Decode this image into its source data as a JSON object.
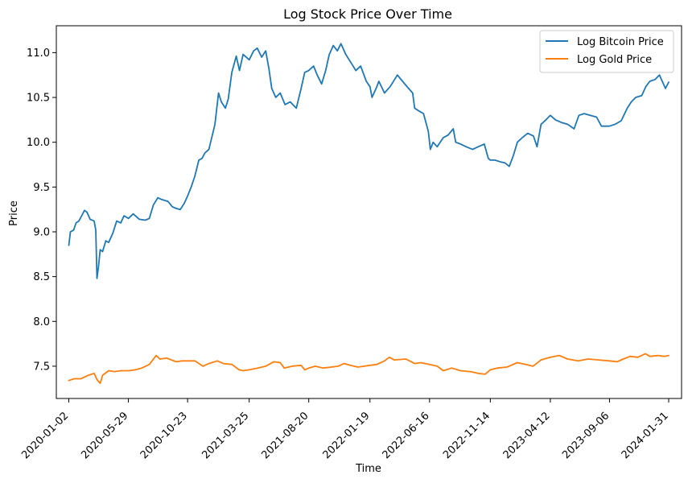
{
  "chart_data": {
    "type": "line",
    "title": "Log Stock Price Over Time",
    "xlabel": "Time",
    "ylabel": "Price",
    "x_ticks": [
      "2020-01-02",
      "2020-05-29",
      "2020-10-23",
      "2021-03-25",
      "2021-08-20",
      "2022-01-19",
      "2022-06-16",
      "2022-11-14",
      "2023-04-12",
      "2023-09-06",
      "2024-01-31"
    ],
    "y_ticks": [
      "7.5",
      "8.0",
      "8.5",
      "9.0",
      "9.5",
      "10.0",
      "10.5",
      "11.0"
    ],
    "x_range": [
      "2019-12-02",
      "2024-03-03"
    ],
    "ylim": [
      7.14,
      11.3
    ],
    "legend_position": "top-right",
    "series": [
      {
        "name": "Log Bitcoin Price",
        "color": "#1f77b4",
        "points": [
          [
            "2020-01-02",
            8.85
          ],
          [
            "2020-01-06",
            9.0
          ],
          [
            "2020-01-14",
            9.02
          ],
          [
            "2020-01-20",
            9.1
          ],
          [
            "2020-01-27",
            9.12
          ],
          [
            "2020-02-03",
            9.18
          ],
          [
            "2020-02-10",
            9.24
          ],
          [
            "2020-02-16",
            9.22
          ],
          [
            "2020-02-24",
            9.14
          ],
          [
            "2020-03-05",
            9.12
          ],
          [
            "2020-03-09",
            9.02
          ],
          [
            "2020-03-12",
            8.48
          ],
          [
            "2020-03-16",
            8.62
          ],
          [
            "2020-03-20",
            8.8
          ],
          [
            "2020-03-26",
            8.78
          ],
          [
            "2020-04-03",
            8.9
          ],
          [
            "2020-04-10",
            8.88
          ],
          [
            "2020-04-20",
            8.98
          ],
          [
            "2020-04-30",
            9.12
          ],
          [
            "2020-05-10",
            9.1
          ],
          [
            "2020-05-18",
            9.18
          ],
          [
            "2020-05-29",
            9.15
          ],
          [
            "2020-06-10",
            9.2
          ],
          [
            "2020-06-25",
            9.14
          ],
          [
            "2020-07-10",
            9.13
          ],
          [
            "2020-07-20",
            9.15
          ],
          [
            "2020-07-30",
            9.3
          ],
          [
            "2020-08-10",
            9.38
          ],
          [
            "2020-08-20",
            9.36
          ],
          [
            "2020-09-04",
            9.34
          ],
          [
            "2020-09-15",
            9.28
          ],
          [
            "2020-09-25",
            9.26
          ],
          [
            "2020-10-05",
            9.25
          ],
          [
            "2020-10-15",
            9.32
          ],
          [
            "2020-10-23",
            9.4
          ],
          [
            "2020-11-01",
            9.5
          ],
          [
            "2020-11-10",
            9.62
          ],
          [
            "2020-11-20",
            9.8
          ],
          [
            "2020-11-28",
            9.82
          ],
          [
            "2020-12-05",
            9.88
          ],
          [
            "2020-12-15",
            9.92
          ],
          [
            "2020-12-22",
            10.05
          ],
          [
            "2020-12-30",
            10.2
          ],
          [
            "2021-01-08",
            10.55
          ],
          [
            "2021-01-15",
            10.45
          ],
          [
            "2021-01-25",
            10.38
          ],
          [
            "2021-02-01",
            10.48
          ],
          [
            "2021-02-10",
            10.78
          ],
          [
            "2021-02-21",
            10.96
          ],
          [
            "2021-03-01",
            10.8
          ],
          [
            "2021-03-10",
            10.98
          ],
          [
            "2021-03-25",
            10.92
          ],
          [
            "2021-04-05",
            11.02
          ],
          [
            "2021-04-14",
            11.05
          ],
          [
            "2021-04-25",
            10.95
          ],
          [
            "2021-05-05",
            11.02
          ],
          [
            "2021-05-13",
            10.82
          ],
          [
            "2021-05-20",
            10.6
          ],
          [
            "2021-05-30",
            10.5
          ],
          [
            "2021-06-10",
            10.55
          ],
          [
            "2021-06-22",
            10.42
          ],
          [
            "2021-07-05",
            10.45
          ],
          [
            "2021-07-20",
            10.38
          ],
          [
            "2021-08-01",
            10.6
          ],
          [
            "2021-08-10",
            10.78
          ],
          [
            "2021-08-20",
            10.8
          ],
          [
            "2021-09-01",
            10.85
          ],
          [
            "2021-09-10",
            10.75
          ],
          [
            "2021-09-21",
            10.65
          ],
          [
            "2021-10-01",
            10.8
          ],
          [
            "2021-10-10",
            10.98
          ],
          [
            "2021-10-20",
            11.08
          ],
          [
            "2021-10-30",
            11.02
          ],
          [
            "2021-11-08",
            11.1
          ],
          [
            "2021-11-20",
            10.98
          ],
          [
            "2021-12-04",
            10.88
          ],
          [
            "2021-12-15",
            10.8
          ],
          [
            "2021-12-27",
            10.85
          ],
          [
            "2022-01-10",
            10.68
          ],
          [
            "2022-01-19",
            10.62
          ],
          [
            "2022-01-24",
            10.5
          ],
          [
            "2022-02-05",
            10.62
          ],
          [
            "2022-02-10",
            10.68
          ],
          [
            "2022-02-24",
            10.55
          ],
          [
            "2022-03-10",
            10.62
          ],
          [
            "2022-03-28",
            10.75
          ],
          [
            "2022-04-10",
            10.68
          ],
          [
            "2022-04-25",
            10.6
          ],
          [
            "2022-05-05",
            10.55
          ],
          [
            "2022-05-10",
            10.38
          ],
          [
            "2022-05-20",
            10.35
          ],
          [
            "2022-06-01",
            10.32
          ],
          [
            "2022-06-13",
            10.12
          ],
          [
            "2022-06-18",
            9.92
          ],
          [
            "2022-06-25",
            10.0
          ],
          [
            "2022-07-05",
            9.95
          ],
          [
            "2022-07-20",
            10.05
          ],
          [
            "2022-08-01",
            10.08
          ],
          [
            "2022-08-14",
            10.15
          ],
          [
            "2022-08-20",
            10.0
          ],
          [
            "2022-09-01",
            9.98
          ],
          [
            "2022-09-15",
            9.95
          ],
          [
            "2022-10-01",
            9.92
          ],
          [
            "2022-10-15",
            9.95
          ],
          [
            "2022-10-30",
            9.98
          ],
          [
            "2022-11-09",
            9.82
          ],
          [
            "2022-11-14",
            9.8
          ],
          [
            "2022-11-25",
            9.8
          ],
          [
            "2022-12-10",
            9.78
          ],
          [
            "2022-12-20",
            9.77
          ],
          [
            "2022-12-31",
            9.73
          ],
          [
            "2023-01-10",
            9.85
          ],
          [
            "2023-01-20",
            10.0
          ],
          [
            "2023-02-01",
            10.05
          ],
          [
            "2023-02-15",
            10.1
          ],
          [
            "2023-03-01",
            10.07
          ],
          [
            "2023-03-10",
            9.95
          ],
          [
            "2023-03-20",
            10.2
          ],
          [
            "2023-04-01",
            10.25
          ],
          [
            "2023-04-12",
            10.3
          ],
          [
            "2023-04-25",
            10.25
          ],
          [
            "2023-05-10",
            10.22
          ],
          [
            "2023-05-25",
            10.2
          ],
          [
            "2023-06-10",
            10.15
          ],
          [
            "2023-06-22",
            10.3
          ],
          [
            "2023-07-05",
            10.32
          ],
          [
            "2023-07-20",
            10.3
          ],
          [
            "2023-08-05",
            10.28
          ],
          [
            "2023-08-17",
            10.18
          ],
          [
            "2023-09-06",
            10.18
          ],
          [
            "2023-09-20",
            10.2
          ],
          [
            "2023-10-05",
            10.24
          ],
          [
            "2023-10-20",
            10.38
          ],
          [
            "2023-10-30",
            10.45
          ],
          [
            "2023-11-10",
            10.5
          ],
          [
            "2023-11-25",
            10.52
          ],
          [
            "2023-12-05",
            10.62
          ],
          [
            "2023-12-15",
            10.68
          ],
          [
            "2023-12-28",
            10.7
          ],
          [
            "2024-01-08",
            10.75
          ],
          [
            "2024-01-15",
            10.68
          ],
          [
            "2024-01-23",
            10.6
          ],
          [
            "2024-01-31",
            10.67
          ]
        ]
      },
      {
        "name": "Log Gold Price",
        "color": "#ff7f0e",
        "points": [
          [
            "2020-01-02",
            7.34
          ],
          [
            "2020-01-15",
            7.36
          ],
          [
            "2020-02-01",
            7.36
          ],
          [
            "2020-02-20",
            7.4
          ],
          [
            "2020-03-05",
            7.42
          ],
          [
            "2020-03-12",
            7.35
          ],
          [
            "2020-03-20",
            7.31
          ],
          [
            "2020-03-26",
            7.4
          ],
          [
            "2020-04-10",
            7.45
          ],
          [
            "2020-04-25",
            7.44
          ],
          [
            "2020-05-10",
            7.45
          ],
          [
            "2020-05-29",
            7.45
          ],
          [
            "2020-06-15",
            7.46
          ],
          [
            "2020-07-01",
            7.48
          ],
          [
            "2020-07-20",
            7.52
          ],
          [
            "2020-08-06",
            7.62
          ],
          [
            "2020-08-15",
            7.58
          ],
          [
            "2020-09-01",
            7.59
          ],
          [
            "2020-09-25",
            7.55
          ],
          [
            "2020-10-10",
            7.56
          ],
          [
            "2020-10-23",
            7.56
          ],
          [
            "2020-11-10",
            7.56
          ],
          [
            "2020-11-30",
            7.5
          ],
          [
            "2020-12-15",
            7.53
          ],
          [
            "2021-01-05",
            7.56
          ],
          [
            "2021-01-20",
            7.53
          ],
          [
            "2021-02-10",
            7.52
          ],
          [
            "2021-02-28",
            7.46
          ],
          [
            "2021-03-10",
            7.45
          ],
          [
            "2021-03-25",
            7.46
          ],
          [
            "2021-04-15",
            7.48
          ],
          [
            "2021-05-05",
            7.5
          ],
          [
            "2021-05-25",
            7.55
          ],
          [
            "2021-06-10",
            7.54
          ],
          [
            "2021-06-20",
            7.48
          ],
          [
            "2021-07-10",
            7.5
          ],
          [
            "2021-08-01",
            7.51
          ],
          [
            "2021-08-10",
            7.46
          ],
          [
            "2021-08-20",
            7.48
          ],
          [
            "2021-09-05",
            7.5
          ],
          [
            "2021-09-25",
            7.48
          ],
          [
            "2021-10-15",
            7.49
          ],
          [
            "2021-11-01",
            7.5
          ],
          [
            "2021-11-16",
            7.53
          ],
          [
            "2021-12-01",
            7.51
          ],
          [
            "2021-12-20",
            7.49
          ],
          [
            "2022-01-05",
            7.5
          ],
          [
            "2022-01-19",
            7.51
          ],
          [
            "2022-02-05",
            7.52
          ],
          [
            "2022-02-24",
            7.56
          ],
          [
            "2022-03-08",
            7.6
          ],
          [
            "2022-03-20",
            7.57
          ],
          [
            "2022-04-18",
            7.58
          ],
          [
            "2022-05-10",
            7.53
          ],
          [
            "2022-05-25",
            7.54
          ],
          [
            "2022-06-16",
            7.52
          ],
          [
            "2022-07-05",
            7.5
          ],
          [
            "2022-07-20",
            7.45
          ],
          [
            "2022-08-10",
            7.48
          ],
          [
            "2022-09-01",
            7.45
          ],
          [
            "2022-09-25",
            7.44
          ],
          [
            "2022-10-15",
            7.42
          ],
          [
            "2022-11-01",
            7.41
          ],
          [
            "2022-11-14",
            7.46
          ],
          [
            "2022-12-01",
            7.48
          ],
          [
            "2022-12-25",
            7.49
          ],
          [
            "2023-01-20",
            7.54
          ],
          [
            "2023-02-10",
            7.52
          ],
          [
            "2023-02-28",
            7.5
          ],
          [
            "2023-03-20",
            7.57
          ],
          [
            "2023-04-12",
            7.6
          ],
          [
            "2023-05-04",
            7.62
          ],
          [
            "2023-05-25",
            7.58
          ],
          [
            "2023-06-20",
            7.56
          ],
          [
            "2023-07-15",
            7.58
          ],
          [
            "2023-08-10",
            7.57
          ],
          [
            "2023-09-06",
            7.56
          ],
          [
            "2023-09-25",
            7.55
          ],
          [
            "2023-10-10",
            7.58
          ],
          [
            "2023-10-27",
            7.61
          ],
          [
            "2023-11-15",
            7.6
          ],
          [
            "2023-12-04",
            7.64
          ],
          [
            "2023-12-15",
            7.61
          ],
          [
            "2024-01-05",
            7.62
          ],
          [
            "2024-01-20",
            7.61
          ],
          [
            "2024-01-31",
            7.62
          ]
        ]
      }
    ]
  }
}
